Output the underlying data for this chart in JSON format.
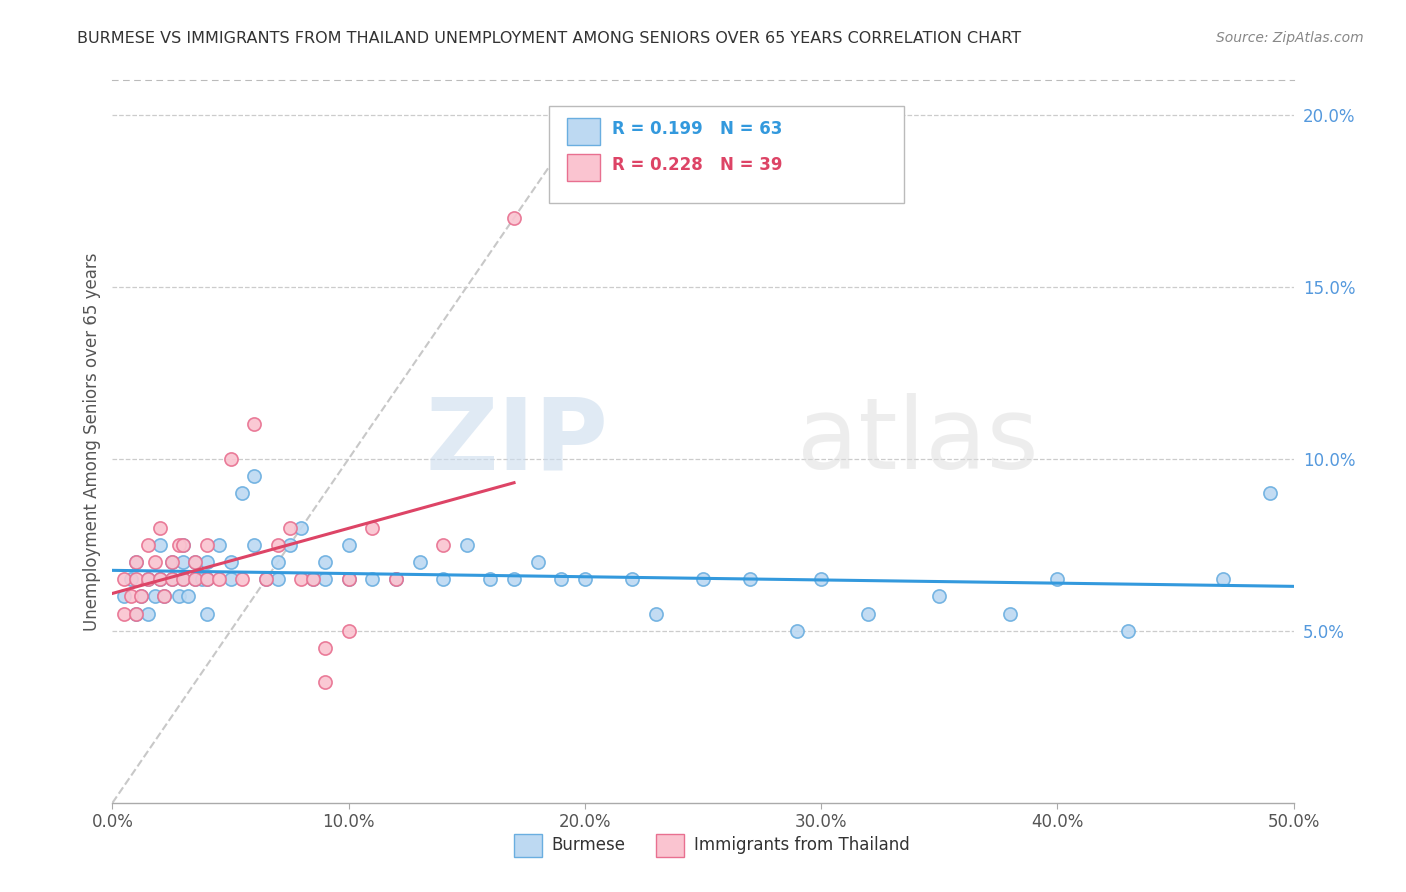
{
  "title": "BURMESE VS IMMIGRANTS FROM THAILAND UNEMPLOYMENT AMONG SENIORS OVER 65 YEARS CORRELATION CHART",
  "source": "Source: ZipAtlas.com",
  "ylabel": "Unemployment Among Seniors over 65 years",
  "xlabel_burmese": "Burmese",
  "xlabel_thailand": "Immigrants from Thailand",
  "xlim": [
    0,
    0.5
  ],
  "ylim": [
    0,
    0.21
  ],
  "xticks": [
    0.0,
    0.1,
    0.2,
    0.3,
    0.4,
    0.5
  ],
  "xtick_labels": [
    "0.0%",
    "10.0%",
    "20.0%",
    "30.0%",
    "40.0%",
    "50.0%"
  ],
  "yticks": [
    0.05,
    0.1,
    0.15,
    0.2
  ],
  "ytick_labels": [
    "5.0%",
    "10.0%",
    "15.0%",
    "20.0%"
  ],
  "legend_R_burmese": "R = 0.199",
  "legend_N_burmese": "N = 63",
  "legend_R_thailand": "R = 0.228",
  "legend_N_thailand": "N = 39",
  "color_burmese_fill": "#BDD9F2",
  "color_burmese_edge": "#6AAEE0",
  "color_thailand_fill": "#FAC4D0",
  "color_thailand_edge": "#E87090",
  "color_trendline_burmese": "#3399DD",
  "color_trendline_thailand": "#DD4466",
  "color_diagonal": "#C8C8C8",
  "color_ytick": "#5599DD",
  "watermark_zip": "ZIP",
  "watermark_atlas": "atlas",
  "burmese_x": [
    0.005,
    0.008,
    0.01,
    0.01,
    0.012,
    0.015,
    0.015,
    0.018,
    0.02,
    0.02,
    0.022,
    0.025,
    0.025,
    0.028,
    0.03,
    0.03,
    0.03,
    0.032,
    0.035,
    0.035,
    0.038,
    0.04,
    0.04,
    0.04,
    0.045,
    0.05,
    0.05,
    0.055,
    0.06,
    0.06,
    0.065,
    0.07,
    0.07,
    0.075,
    0.08,
    0.085,
    0.09,
    0.09,
    0.1,
    0.1,
    0.11,
    0.12,
    0.13,
    0.14,
    0.15,
    0.16,
    0.17,
    0.18,
    0.19,
    0.2,
    0.22,
    0.23,
    0.25,
    0.27,
    0.29,
    0.3,
    0.32,
    0.35,
    0.38,
    0.4,
    0.43,
    0.47,
    0.49
  ],
  "burmese_y": [
    0.06,
    0.065,
    0.055,
    0.07,
    0.06,
    0.065,
    0.055,
    0.06,
    0.065,
    0.075,
    0.06,
    0.065,
    0.07,
    0.06,
    0.065,
    0.07,
    0.075,
    0.06,
    0.065,
    0.07,
    0.065,
    0.055,
    0.065,
    0.07,
    0.075,
    0.065,
    0.07,
    0.09,
    0.095,
    0.075,
    0.065,
    0.065,
    0.07,
    0.075,
    0.08,
    0.065,
    0.07,
    0.065,
    0.065,
    0.075,
    0.065,
    0.065,
    0.07,
    0.065,
    0.075,
    0.065,
    0.065,
    0.07,
    0.065,
    0.065,
    0.065,
    0.055,
    0.065,
    0.065,
    0.05,
    0.065,
    0.055,
    0.06,
    0.055,
    0.065,
    0.05,
    0.065,
    0.09
  ],
  "thailand_x": [
    0.005,
    0.005,
    0.008,
    0.01,
    0.01,
    0.01,
    0.012,
    0.015,
    0.015,
    0.018,
    0.02,
    0.02,
    0.022,
    0.025,
    0.025,
    0.028,
    0.03,
    0.03,
    0.035,
    0.035,
    0.04,
    0.04,
    0.045,
    0.05,
    0.055,
    0.06,
    0.065,
    0.07,
    0.075,
    0.08,
    0.085,
    0.09,
    0.09,
    0.1,
    0.1,
    0.11,
    0.12,
    0.14,
    0.17
  ],
  "thailand_y": [
    0.065,
    0.055,
    0.06,
    0.065,
    0.07,
    0.055,
    0.06,
    0.075,
    0.065,
    0.07,
    0.08,
    0.065,
    0.06,
    0.065,
    0.07,
    0.075,
    0.065,
    0.075,
    0.065,
    0.07,
    0.065,
    0.075,
    0.065,
    0.1,
    0.065,
    0.11,
    0.065,
    0.075,
    0.08,
    0.065,
    0.065,
    0.045,
    0.035,
    0.05,
    0.065,
    0.08,
    0.065,
    0.075,
    0.17
  ]
}
